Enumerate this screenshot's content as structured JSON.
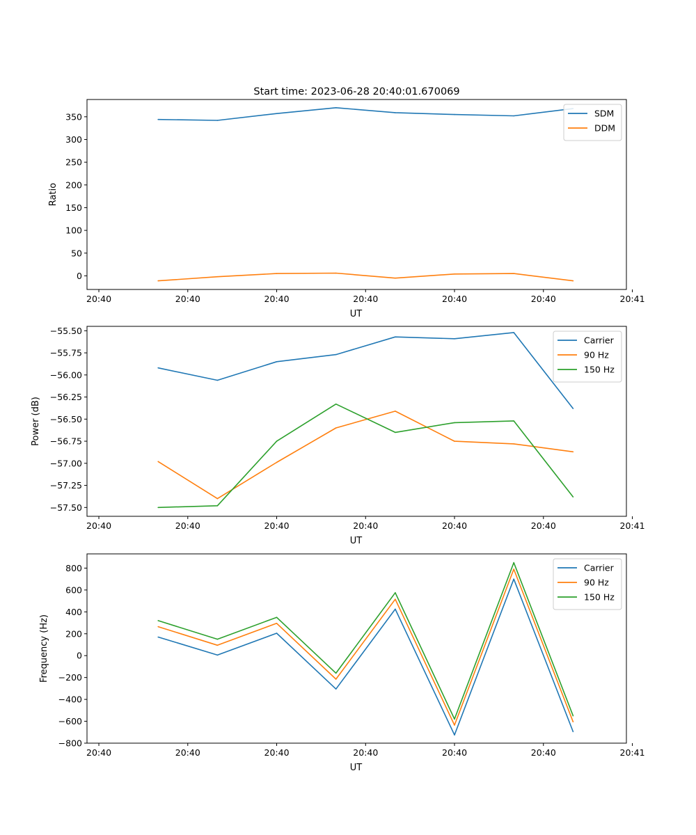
{
  "figure_title": "Start time: 2023-06-28 20:40:01.670069",
  "chart_data": [
    {
      "type": "line",
      "title": "Start time: 2023-06-28 20:40:01.670069",
      "xlabel": "UT",
      "ylabel": "Ratio",
      "x": [
        2.2,
        3.2,
        4.2,
        5.2,
        6.2,
        7.2,
        8.2,
        9.2
      ],
      "xlim": [
        1.0,
        10.1
      ],
      "xticks": [
        1.2,
        2.7,
        4.2,
        5.7,
        7.2,
        8.7,
        10.2
      ],
      "xtick_labels": [
        "20:40",
        "20:40",
        "20:40",
        "20:40",
        "20:40",
        "20:40",
        "20:41"
      ],
      "ylim": [
        -30,
        388
      ],
      "yticks": [
        0,
        50,
        100,
        150,
        200,
        250,
        300,
        350
      ],
      "ytick_labels": [
        "0",
        "50",
        "100",
        "150",
        "200",
        "250",
        "300",
        "350"
      ],
      "legend_position": "upper right",
      "series": [
        {
          "name": "SDM",
          "color": "#1f77b4",
          "values": [
            344,
            342,
            357,
            370,
            359,
            355,
            352,
            368
          ]
        },
        {
          "name": "DDM",
          "color": "#ff7f0e",
          "values": [
            -11,
            -2,
            5,
            6,
            -5,
            4,
            5,
            -11
          ]
        }
      ]
    },
    {
      "type": "line",
      "xlabel": "UT",
      "ylabel": "Power (dB)",
      "x": [
        2.2,
        3.2,
        4.2,
        5.2,
        6.2,
        7.2,
        8.2,
        9.2
      ],
      "xlim": [
        1.0,
        10.1
      ],
      "xticks": [
        1.2,
        2.7,
        4.2,
        5.7,
        7.2,
        8.7,
        10.2
      ],
      "xtick_labels": [
        "20:40",
        "20:40",
        "20:40",
        "20:40",
        "20:40",
        "20:40",
        "20:41"
      ],
      "ylim": [
        -57.6,
        -55.45
      ],
      "yticks": [
        -57.5,
        -57.25,
        -57.0,
        -56.75,
        -56.5,
        -56.25,
        -56.0,
        -55.75,
        -55.5
      ],
      "ytick_labels": [
        "−57.50",
        "−57.25",
        "−57.00",
        "−56.75",
        "−56.50",
        "−56.25",
        "−56.00",
        "−55.75",
        "−55.50"
      ],
      "legend_position": "upper right",
      "series": [
        {
          "name": "Carrier",
          "color": "#1f77b4",
          "values": [
            -55.92,
            -56.06,
            -55.85,
            -55.77,
            -55.57,
            -55.59,
            -55.52,
            -56.38
          ]
        },
        {
          "name": "90 Hz",
          "color": "#ff7f0e",
          "values": [
            -56.98,
            -57.4,
            -56.99,
            -56.6,
            -56.41,
            -56.75,
            -56.78,
            -56.87
          ]
        },
        {
          "name": "150 Hz",
          "color": "#2ca02c",
          "values": [
            -57.5,
            -57.48,
            -56.75,
            -56.33,
            -56.65,
            -56.54,
            -56.52,
            -57.38
          ]
        }
      ]
    },
    {
      "type": "line",
      "xlabel": "UT",
      "ylabel": "Frequency (Hz)",
      "x": [
        2.2,
        3.2,
        4.2,
        5.2,
        6.2,
        7.2,
        8.2,
        9.2
      ],
      "xlim": [
        1.0,
        10.1
      ],
      "xticks": [
        1.2,
        2.7,
        4.2,
        5.7,
        7.2,
        8.7,
        10.2
      ],
      "xtick_labels": [
        "20:40",
        "20:40",
        "20:40",
        "20:40",
        "20:40",
        "20:40",
        "20:41"
      ],
      "ylim": [
        -800,
        930
      ],
      "yticks": [
        -800,
        -600,
        -400,
        -200,
        0,
        200,
        400,
        600,
        800
      ],
      "ytick_labels": [
        "−800",
        "−600",
        "−400",
        "−200",
        "0",
        "200",
        "400",
        "600",
        "800"
      ],
      "legend_position": "upper right",
      "series": [
        {
          "name": "Carrier",
          "color": "#1f77b4",
          "values": [
            170,
            5,
            205,
            -305,
            425,
            -725,
            700,
            -695
          ]
        },
        {
          "name": "90 Hz",
          "color": "#ff7f0e",
          "values": [
            265,
            95,
            295,
            -215,
            515,
            -635,
            790,
            -605
          ]
        },
        {
          "name": "150 Hz",
          "color": "#2ca02c",
          "values": [
            320,
            150,
            350,
            -160,
            575,
            -580,
            850,
            -550
          ]
        }
      ]
    }
  ]
}
